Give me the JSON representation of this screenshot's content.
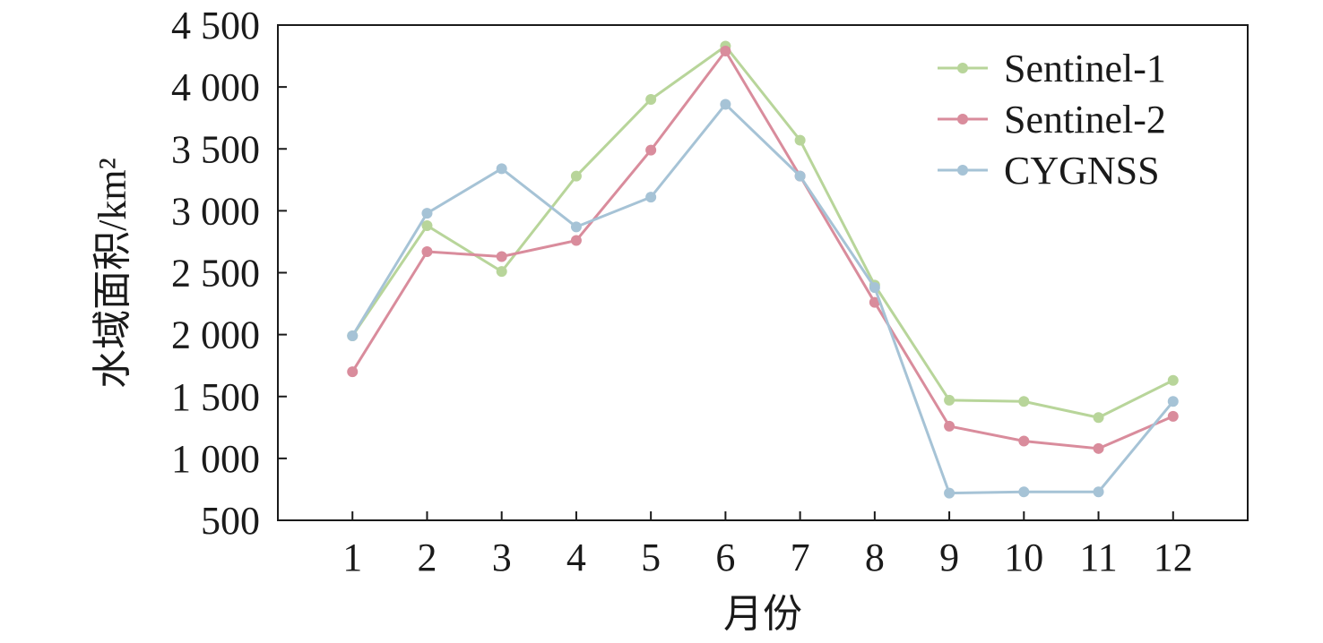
{
  "chart_data": {
    "type": "line",
    "title": "",
    "xlabel": "月份",
    "ylabel": "水域面积/km²",
    "ylim": [
      500,
      4500
    ],
    "xlim": [
      0,
      13
    ],
    "yticks": [
      500,
      1000,
      1500,
      2000,
      2500,
      3000,
      3500,
      4000,
      4500
    ],
    "ytick_labels": [
      "500",
      "1 000",
      "1 500",
      "2 000",
      "2 500",
      "3 000",
      "3 500",
      "4 000",
      "4 500"
    ],
    "x": [
      1,
      2,
      3,
      4,
      5,
      6,
      7,
      8,
      9,
      10,
      11,
      12
    ],
    "xtick_labels": [
      "1",
      "2",
      "3",
      "4",
      "5",
      "6",
      "7",
      "8",
      "9",
      "10",
      "11",
      "12"
    ],
    "grid": false,
    "legend_position": "top-right",
    "series": [
      {
        "name": "Sentinel-1",
        "color": "#b8d59a",
        "values": [
          1990,
          2880,
          2510,
          3280,
          3900,
          4330,
          3570,
          2400,
          1470,
          1460,
          1330,
          1630
        ]
      },
      {
        "name": "Sentinel-2",
        "color": "#d98c9c",
        "values": [
          1700,
          2670,
          2630,
          2760,
          3490,
          4290,
          3280,
          2260,
          1260,
          1140,
          1080,
          1340
        ]
      },
      {
        "name": "CYGNSS",
        "color": "#a6c3d6",
        "values": [
          1990,
          2980,
          3340,
          2870,
          3110,
          3860,
          3280,
          2380,
          720,
          730,
          730,
          1460
        ]
      }
    ]
  }
}
